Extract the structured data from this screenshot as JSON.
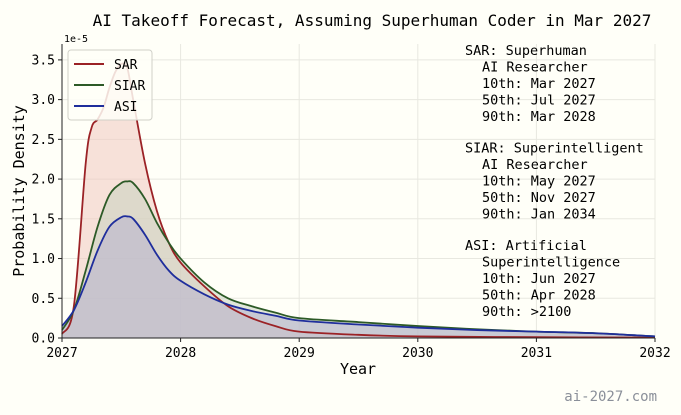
{
  "chart_data": {
    "type": "area",
    "title": "AI Takeoff Forecast, Assuming Superhuman Coder in Mar 2027",
    "xlabel": "Year",
    "ylabel": "Probability Density",
    "y_multiplier": "1e-5",
    "xlim": [
      2027,
      2032
    ],
    "ylim": [
      0,
      3.7
    ],
    "x_ticks": [
      "2027",
      "2028",
      "2029",
      "2030",
      "2031",
      "2032"
    ],
    "y_ticks": [
      "0.0",
      "0.5",
      "1.0",
      "1.5",
      "2.0",
      "2.5",
      "3.0",
      "3.5"
    ],
    "grid": true,
    "legend_position": "top-left",
    "series": [
      {
        "name": "SAR",
        "color": "#9b2226",
        "fill": "#f0c9c0",
        "x": [
          2027.0,
          2027.1,
          2027.2,
          2027.25,
          2027.3,
          2027.35,
          2027.4,
          2027.45,
          2027.5,
          2027.55,
          2027.6,
          2027.7,
          2027.8,
          2027.9,
          2028.0,
          2028.2,
          2028.4,
          2028.6,
          2028.8,
          2029.0,
          2029.5,
          2030.0,
          2031.0,
          2032.0
        ],
        "values": [
          0.05,
          0.4,
          2.2,
          2.65,
          2.75,
          2.9,
          3.15,
          3.35,
          3.45,
          3.4,
          3.0,
          2.2,
          1.6,
          1.2,
          0.95,
          0.65,
          0.4,
          0.25,
          0.15,
          0.08,
          0.04,
          0.02,
          0.01,
          0.005
        ]
      },
      {
        "name": "SIAR",
        "color": "#2d5a27",
        "fill": "#c8d4bf",
        "x": [
          2027.0,
          2027.1,
          2027.2,
          2027.3,
          2027.4,
          2027.5,
          2027.55,
          2027.6,
          2027.7,
          2027.8,
          2027.9,
          2028.0,
          2028.2,
          2028.4,
          2028.6,
          2028.8,
          2029.0,
          2029.5,
          2030.0,
          2030.5,
          2031.0,
          2031.5,
          2032.0
        ],
        "values": [
          0.1,
          0.35,
          0.85,
          1.4,
          1.8,
          1.95,
          1.97,
          1.95,
          1.75,
          1.45,
          1.2,
          1.0,
          0.7,
          0.5,
          0.4,
          0.32,
          0.25,
          0.2,
          0.15,
          0.11,
          0.08,
          0.06,
          0.02
        ]
      },
      {
        "name": "ASI",
        "color": "#1f2e9c",
        "fill": "#b7b3cf",
        "x": [
          2027.0,
          2027.1,
          2027.2,
          2027.3,
          2027.4,
          2027.5,
          2027.55,
          2027.6,
          2027.7,
          2027.8,
          2027.9,
          2028.0,
          2028.2,
          2028.4,
          2028.6,
          2028.8,
          2029.0,
          2029.5,
          2030.0,
          2030.5,
          2031.0,
          2031.5,
          2032.0
        ],
        "values": [
          0.15,
          0.35,
          0.7,
          1.1,
          1.4,
          1.52,
          1.53,
          1.5,
          1.3,
          1.05,
          0.85,
          0.72,
          0.55,
          0.42,
          0.34,
          0.28,
          0.22,
          0.17,
          0.13,
          0.1,
          0.08,
          0.06,
          0.02
        ]
      }
    ],
    "annotations": [
      {
        "name": "SAR: Superhuman",
        "lines": [
          "AI Researcher",
          "10th: Mar 2027",
          "50th: Jul 2027",
          "90th: Mar 2028"
        ]
      },
      {
        "name": "SIAR: Superintelligent",
        "lines": [
          "AI Researcher",
          "10th: May 2027",
          "50th: Nov 2027",
          "90th: Jan 2034"
        ]
      },
      {
        "name": "ASI: Artificial",
        "lines": [
          "Superintelligence",
          "10th: Jun 2027",
          "50th: Apr 2028",
          "90th: >2100"
        ]
      }
    ]
  },
  "credit": "ai-2027.com"
}
